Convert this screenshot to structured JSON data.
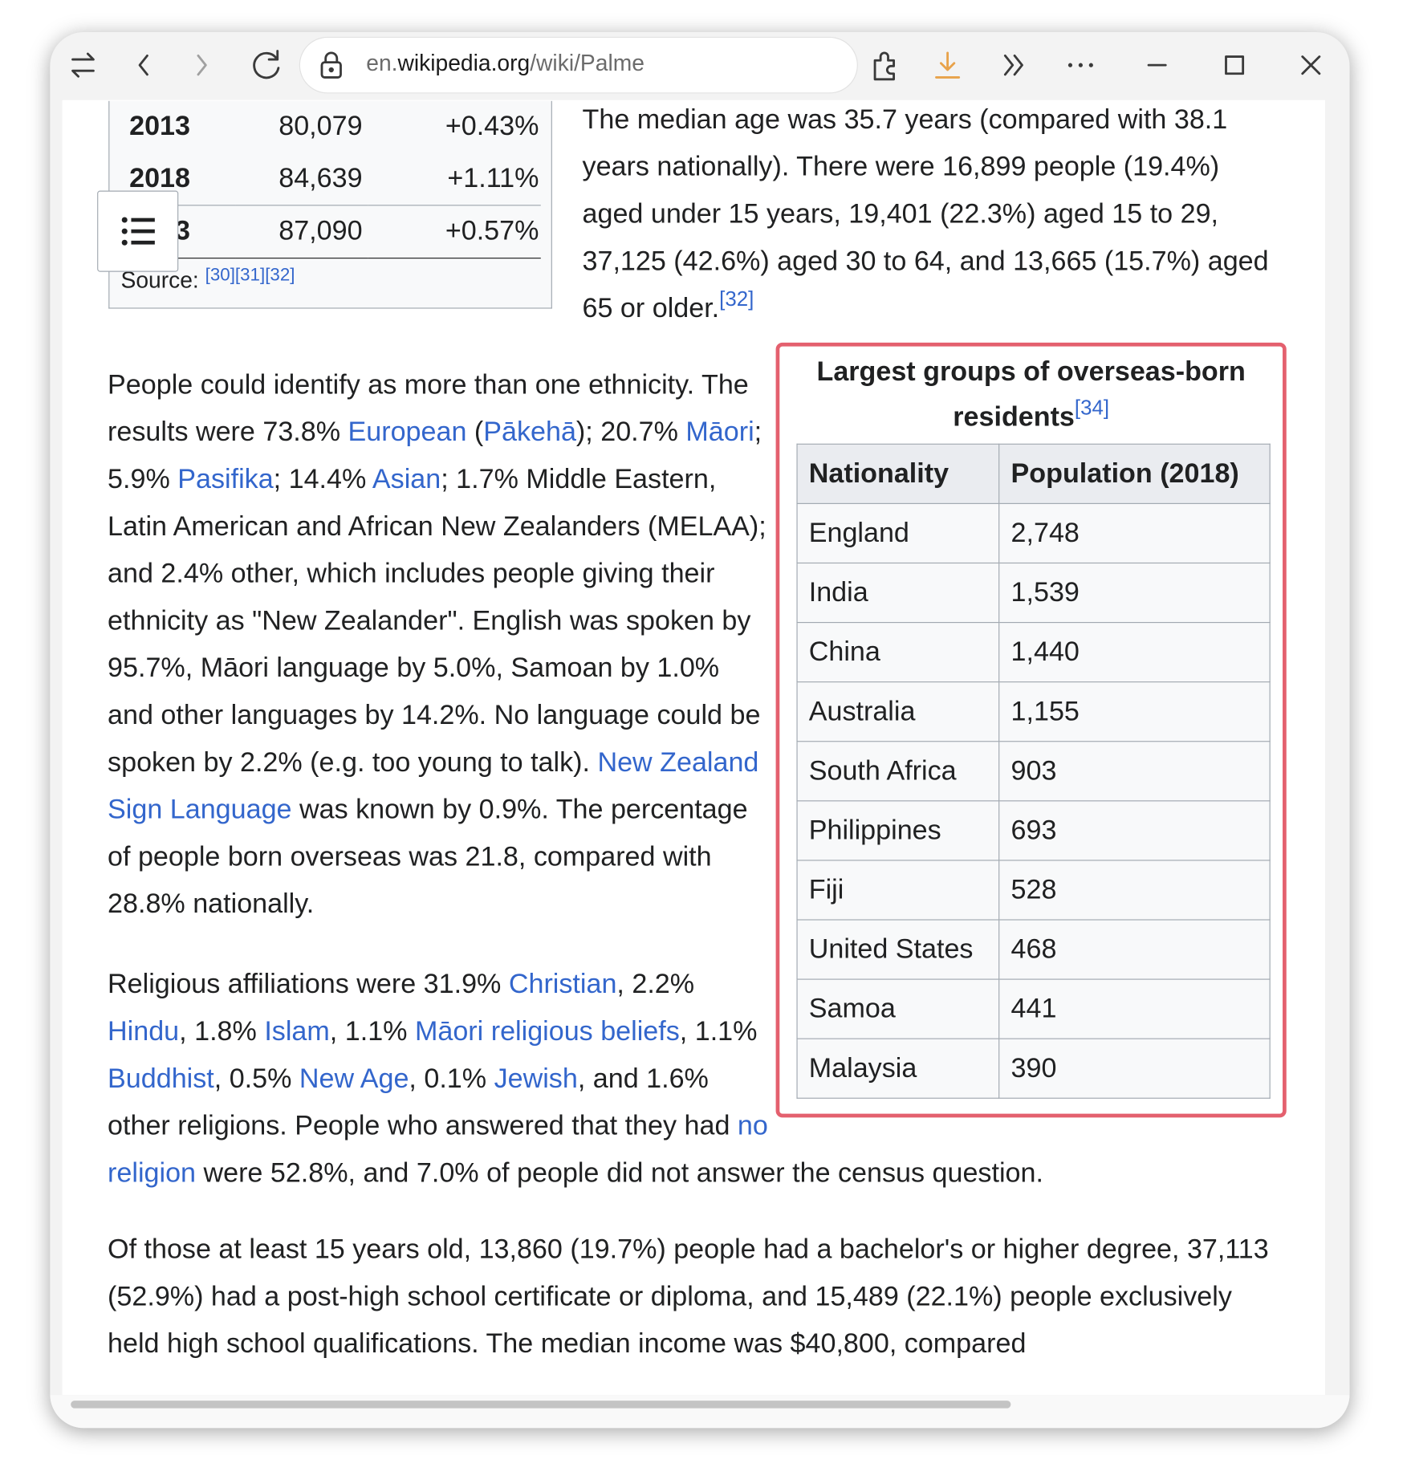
{
  "browser": {
    "url_parts": [
      "en.",
      "wikipedia.org",
      "/wiki/Palme"
    ]
  },
  "population_table": {
    "rows": [
      [
        "2013",
        "80,079",
        "+0.43%"
      ],
      [
        "2018",
        "84,639",
        "+1.11%"
      ],
      [
        "2023",
        "87,090",
        "+0.57%"
      ]
    ],
    "source_label": "Source:",
    "source_refs": [
      "[30]",
      "[31]",
      "[32]"
    ]
  },
  "paragraphs": [
    [
      {
        "text": "The median age was 35.7 years (compared with 38.1 years nationally). There were 16,899 people (19.4%) aged under 15 years, 19,401 (22.3%) aged 15 to 29, 37,125 (42.6%) aged 30 to 64, and 13,665 (15.7%) aged 65 or older."
      },
      {
        "ref": "[32]"
      }
    ],
    [
      {
        "text": "People could identify as more than one ethnicity. The results were 73.8% "
      },
      {
        "link": "European"
      },
      {
        "text": " ("
      },
      {
        "link": "Pākehā"
      },
      {
        "text": "); 20.7% "
      },
      {
        "link": "Māori"
      },
      {
        "text": "; 5.9% "
      },
      {
        "link": "Pasifika"
      },
      {
        "text": "; 14.4% "
      },
      {
        "link": "Asian"
      },
      {
        "text": "; 1.7% Middle Eastern, Latin American and African New Zealanders (MELAA); and 2.4% other, which includes people giving their ethnicity as \"New Zealander\". English was spoken by 95.7%, Māori language by 5.0%, Samoan by 1.0% and other languages by 14.2%. No language could be spoken by 2.2% (e.g. too young to talk). "
      },
      {
        "link": "New Zealand Sign Language"
      },
      {
        "text": " was known by 0.9%. The percentage of people born overseas was 21.8, compared with 28.8% nationally."
      }
    ],
    [
      {
        "text": "Religious affiliations were 31.9% "
      },
      {
        "link": "Christian"
      },
      {
        "text": ", 2.2% "
      },
      {
        "link": "Hindu"
      },
      {
        "text": ", 1.8% "
      },
      {
        "link": "Islam"
      },
      {
        "text": ", 1.1% "
      },
      {
        "link": "Māori religious beliefs"
      },
      {
        "text": ", 1.1% "
      },
      {
        "link": "Buddhist"
      },
      {
        "text": ", 0.5% "
      },
      {
        "link": "New Age"
      },
      {
        "text": ", 0.1% "
      },
      {
        "link": "Jewish"
      },
      {
        "text": ", and 1.6% other religions. People who answered that they had "
      },
      {
        "link": "no religion"
      },
      {
        "text": " were 52.8%, and 7.0% of people did not answer the census question."
      }
    ],
    [
      {
        "text": "Of those at least 15 years old, 13,860 (19.7%) people had a bachelor's or higher degree, 37,113 (52.9%) had a post-high school certificate or diploma, and 15,489 (22.1%) people exclusively held high school qualifications. The median income was $40,800, compared"
      }
    ]
  ],
  "infobox": {
    "title": "Largest groups of overseas-born residents",
    "title_ref": "[34]",
    "header": [
      "Nationality",
      "Population (2018)"
    ],
    "rows": [
      [
        "England",
        "2,748"
      ],
      [
        "India",
        "1,539"
      ],
      [
        "China",
        "1,440"
      ],
      [
        "Australia",
        "1,155"
      ],
      [
        "South Africa",
        "903"
      ],
      [
        "Philippines",
        "693"
      ],
      [
        "Fiji",
        "528"
      ],
      [
        "United States",
        "468"
      ],
      [
        "Samoa",
        "441"
      ],
      [
        "Malaysia",
        "390"
      ]
    ]
  }
}
